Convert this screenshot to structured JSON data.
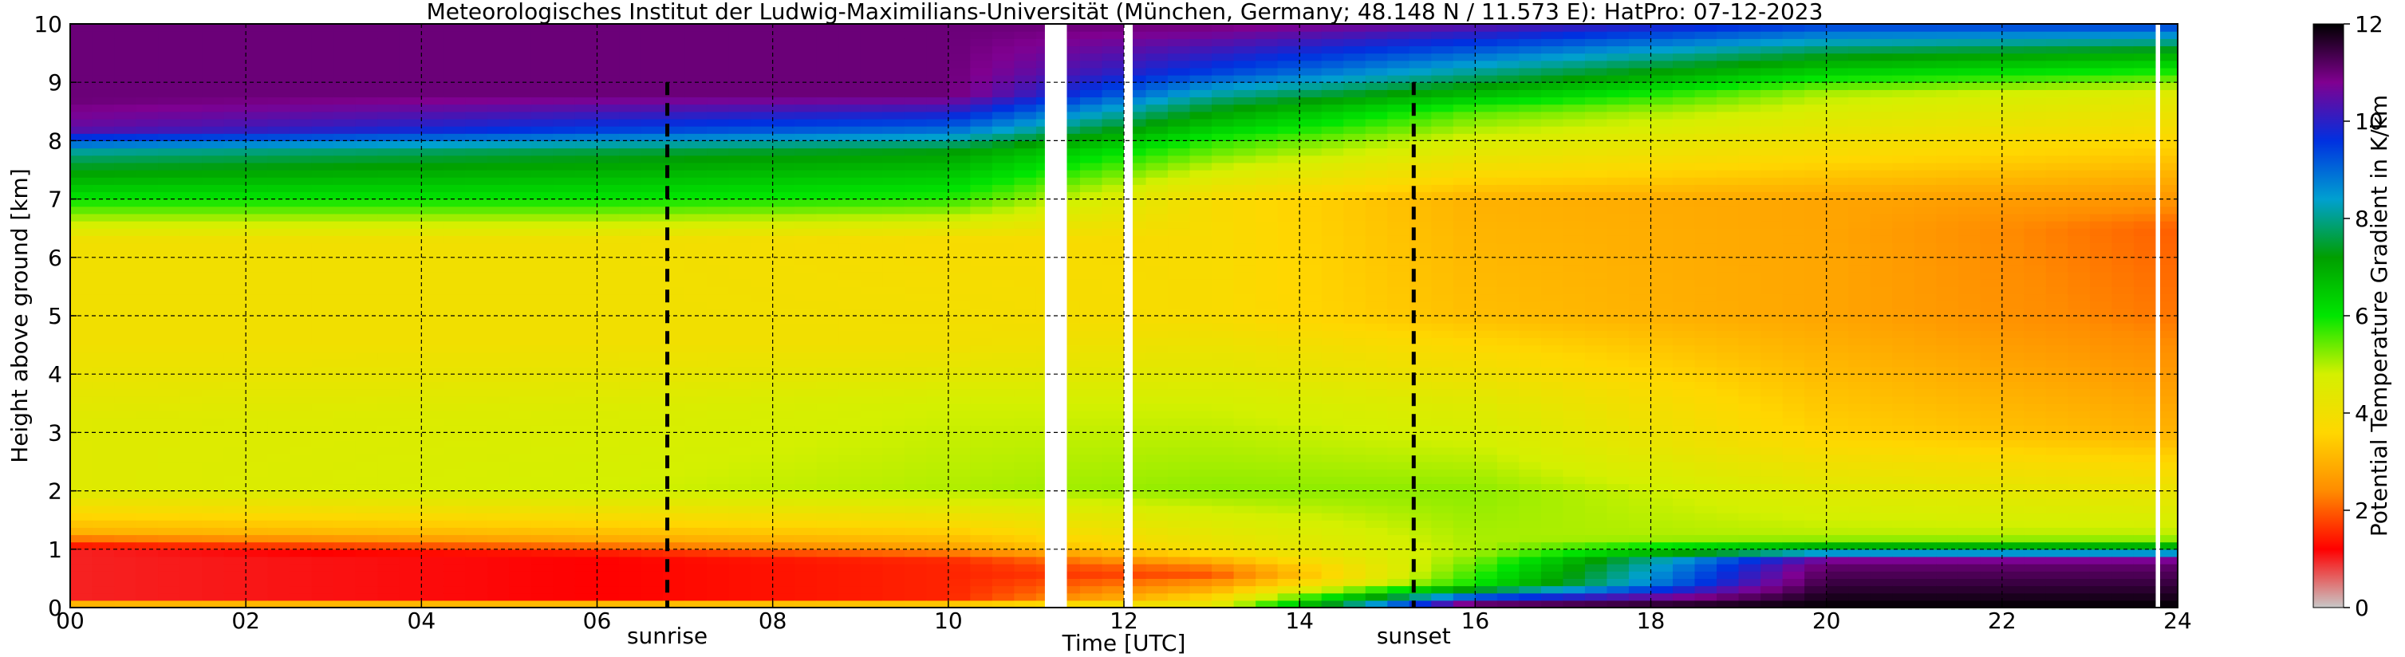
{
  "chart_data": {
    "type": "heatmap",
    "title": "Meteorologisches Institut der Ludwig-Maximilians-Universität (München, Germany; 48.148 N / 11.573 E):    HatPro: 07-12-2023",
    "xlabel": "Time [UTC]",
    "ylabel": "Height above ground [km]",
    "xlim": [
      0,
      24
    ],
    "ylim": [
      0,
      10
    ],
    "x_ticks": [
      0,
      2,
      4,
      6,
      8,
      10,
      12,
      14,
      16,
      18,
      20,
      22,
      24
    ],
    "x_tick_labels": [
      "00",
      "02",
      "04",
      "06",
      "08",
      "10",
      "12",
      "14",
      "16",
      "18",
      "20",
      "22",
      "24"
    ],
    "y_ticks": [
      0,
      1,
      2,
      3,
      4,
      5,
      6,
      7,
      8,
      9,
      10
    ],
    "y_tick_labels": [
      "0",
      "1",
      "2",
      "3",
      "4",
      "5",
      "6",
      "7",
      "8",
      "9",
      "10"
    ],
    "grid": true,
    "colorbar": {
      "label": "Potential Temperature Gradient in K/km",
      "range": [
        0,
        12
      ],
      "ticks": [
        0,
        2,
        4,
        6,
        8,
        10,
        12
      ],
      "tick_labels": [
        "0",
        "2",
        "4",
        "6",
        "8",
        "10",
        "12"
      ]
    },
    "annotations": [
      {
        "name": "sunrise",
        "label": "sunrise",
        "time_utc": 6.8
      },
      {
        "name": "sunset",
        "label": "sunset",
        "time_utc": 15.3
      }
    ],
    "data_gaps_utc": [
      [
        11.1,
        11.35
      ],
      [
        12.0,
        12.1
      ],
      [
        23.75,
        23.8
      ]
    ],
    "profiles": [
      {
        "time_utc": 0,
        "heights_km": [
          0,
          0.15,
          1.0,
          1.3,
          2.0,
          3.2,
          4.5,
          6.3,
          7.0,
          7.8,
          8.2,
          8.7,
          10
        ],
        "gradient_k_per_km": [
          4.5,
          1.0,
          1.0,
          3.0,
          4.5,
          4.5,
          4.0,
          4.0,
          6.0,
          8.0,
          10.5,
          11.0,
          11.0
        ]
      },
      {
        "time_utc": 6,
        "heights_km": [
          0,
          0.15,
          0.9,
          1.2,
          2.0,
          3.4,
          4.5,
          6.3,
          7.0,
          7.8,
          8.2,
          8.8,
          10
        ],
        "gradient_k_per_km": [
          4.5,
          1.2,
          1.2,
          3.0,
          4.8,
          4.6,
          4.0,
          4.0,
          6.0,
          7.5,
          9.5,
          11.0,
          11.0
        ]
      },
      {
        "time_utc": 10,
        "heights_km": [
          0,
          0.15,
          0.8,
          1.1,
          2.0,
          3.5,
          4.5,
          6.3,
          7.0,
          7.8,
          8.2,
          8.8,
          10
        ],
        "gradient_k_per_km": [
          4.6,
          1.5,
          1.5,
          3.0,
          5.0,
          4.8,
          4.0,
          3.8,
          5.8,
          7.2,
          9.0,
          11.0,
          11.0
        ]
      },
      {
        "time_utc": 13,
        "heights_km": [
          0,
          0.3,
          0.6,
          1.0,
          2.0,
          3.5,
          5.0,
          7.0,
          8.0,
          8.6,
          9.2,
          10
        ],
        "gradient_k_per_km": [
          4.5,
          3.0,
          1.8,
          4.0,
          5.2,
          4.8,
          3.8,
          3.8,
          5.8,
          7.5,
          9.5,
          11.0
        ]
      },
      {
        "time_utc": 16,
        "heights_km": [
          0,
          0.2,
          0.4,
          1.0,
          2.0,
          3.5,
          5.0,
          7.0,
          8.5,
          9.0,
          9.5,
          10
        ],
        "gradient_k_per_km": [
          12.0,
          9.0,
          6.0,
          5.0,
          5.2,
          4.5,
          3.2,
          3.0,
          5.5,
          7.5,
          9.0,
          10.5
        ]
      },
      {
        "time_utc": 20,
        "heights_km": [
          0,
          0.8,
          0.9,
          1.2,
          2.0,
          3.0,
          5.0,
          7.0,
          8.8,
          9.5,
          10
        ],
        "gradient_k_per_km": [
          12.0,
          11.0,
          9.0,
          5.0,
          4.5,
          3.5,
          2.8,
          2.8,
          5.0,
          7.5,
          9.5
        ]
      },
      {
        "time_utc": 24,
        "heights_km": [
          0,
          0.8,
          0.9,
          1.2,
          2.0,
          3.0,
          5.0,
          6.5,
          8.8,
          9.5,
          10
        ],
        "gradient_k_per_km": [
          12.0,
          11.0,
          9.0,
          5.0,
          4.2,
          3.0,
          2.2,
          2.0,
          4.5,
          7.0,
          9.5
        ]
      }
    ]
  },
  "colors": {
    "colormap": [
      "#c8c8c8",
      "#ff0000",
      "#ff8c00",
      "#ffd700",
      "#d4f000",
      "#00e600",
      "#009f00",
      "#00a0d0",
      "#0030e0",
      "#800090",
      "#000000"
    ],
    "grid": "#000000",
    "marker_line": "#000000",
    "gap": "#ffffff"
  }
}
